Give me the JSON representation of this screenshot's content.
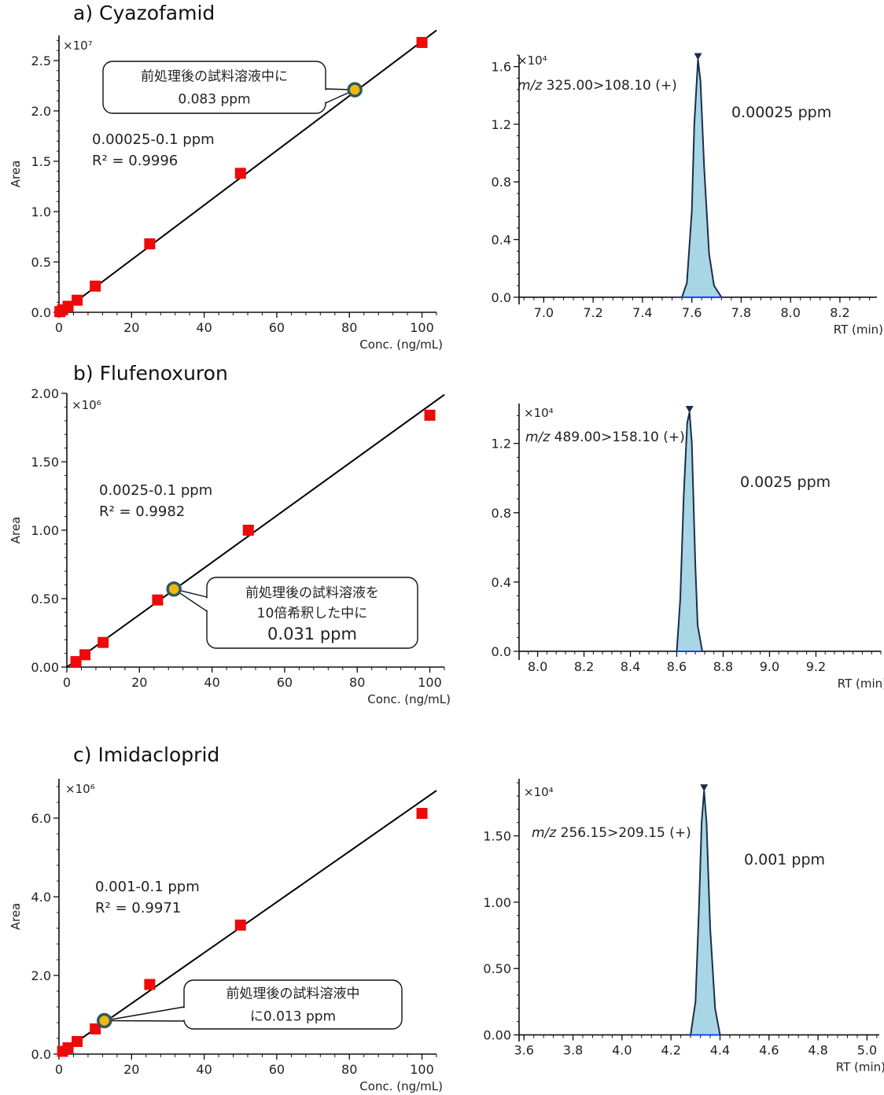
{
  "panels": [
    {
      "title": "a) Cyazofamid"
    },
    {
      "title": "b) Flufenoxuron"
    },
    {
      "title": "c) Imidacloprid"
    }
  ],
  "chart_data": [
    {
      "type": "scatter",
      "panel": "a",
      "title": "",
      "xlabel": "Conc. (ng/mL)",
      "ylabel": "Area",
      "y_multiplier": "×10⁷",
      "xlim": [
        0,
        104
      ],
      "ylim": [
        0,
        2.75
      ],
      "xticks": [
        0,
        20,
        40,
        60,
        80,
        100
      ],
      "yticks": [
        0.0,
        0.5,
        1.0,
        1.5,
        2.0,
        2.5
      ],
      "ytick_labels": [
        "0.0",
        "0.5",
        "1.0",
        "1.5",
        "2.0",
        "2.5"
      ],
      "points": {
        "x": [
          0.25,
          1,
          2.5,
          5,
          10,
          25,
          50,
          100
        ],
        "y": [
          0.006,
          0.025,
          0.06,
          0.12,
          0.26,
          0.68,
          1.38,
          2.68
        ]
      },
      "fit_line": {
        "x": [
          0,
          104
        ],
        "y": [
          -0.02,
          2.8
        ]
      },
      "sample_point": {
        "x": 81.5,
        "y": 2.21
      },
      "annotation_range": "0.00025-0.1 ppm",
      "annotation_r2": "R² = 0.9996",
      "callout_lines": [
        "前処理後の試料溶液中に",
        "0.083 ppm"
      ]
    },
    {
      "type": "line",
      "panel": "a",
      "title": "",
      "xlabel": "RT (min)",
      "ylabel": "",
      "y_multiplier": "×10⁴",
      "xlim": [
        6.9,
        8.35
      ],
      "ylim": [
        -0.05,
        1.68
      ],
      "xticks": [
        7.0,
        7.2,
        7.4,
        7.6,
        7.8,
        8.0,
        8.2
      ],
      "xtick_labels": [
        "7.0",
        "7.2",
        "7.4",
        "7.6",
        "7.8",
        "8.0",
        "8.2"
      ],
      "yticks": [
        0.0,
        0.4,
        0.8,
        1.2,
        1.6
      ],
      "ytick_labels": [
        "0.0",
        "0.4",
        "0.8",
        "1.2",
        "1.6"
      ],
      "transition_italic": "m/z",
      "transition": "325.00>108.10 (+)",
      "concentration_label": "0.00025 ppm",
      "peak": {
        "x": [
          7.56,
          7.58,
          7.6,
          7.61,
          7.625,
          7.635,
          7.65,
          7.67,
          7.69,
          7.72
        ],
        "y": [
          0.0,
          0.1,
          0.6,
          1.2,
          1.65,
          1.5,
          0.9,
          0.3,
          0.08,
          0.0
        ]
      }
    },
    {
      "type": "scatter",
      "panel": "b",
      "title": "",
      "xlabel": "Conc. (ng/mL)",
      "ylabel": "Area",
      "y_multiplier": "×10⁶",
      "xlim": [
        0,
        104
      ],
      "ylim": [
        0,
        2.0
      ],
      "xticks": [
        0,
        20,
        40,
        60,
        80,
        100
      ],
      "yticks": [
        0.0,
        0.5,
        1.0,
        1.5,
        2.0
      ],
      "ytick_labels": [
        "0.00",
        "0.50",
        "1.00",
        "1.50",
        "2.00"
      ],
      "points": {
        "x": [
          2.5,
          5,
          10,
          25,
          50,
          100
        ],
        "y": [
          0.04,
          0.09,
          0.18,
          0.49,
          1.0,
          1.84
        ]
      },
      "fit_line": {
        "x": [
          0,
          104
        ],
        "y": [
          0.0,
          1.99
        ]
      },
      "sample_point": {
        "x": 29.5,
        "y": 0.57
      },
      "annotation_range": "0.0025-0.1 ppm",
      "annotation_r2": "R² = 0.9982",
      "callout_lines": [
        "前処理後の試料溶液を",
        "10倍希釈した中に",
        "0.031 ppm"
      ]
    },
    {
      "type": "line",
      "panel": "b",
      "title": "",
      "xlabel": "RT (min)",
      "ylabel": "",
      "y_multiplier": "×10⁴",
      "xlim": [
        7.92,
        9.48
      ],
      "ylim": [
        -0.05,
        1.43
      ],
      "xticks": [
        8.0,
        8.2,
        8.4,
        8.6,
        8.8,
        9.0,
        9.2
      ],
      "xtick_labels": [
        "8.0",
        "8.2",
        "8.4",
        "8.6",
        "8.8",
        "9.0",
        "9.2"
      ],
      "yticks": [
        0.0,
        0.4,
        0.8,
        1.2
      ],
      "ytick_labels": [
        "0.0",
        "0.4",
        "0.8",
        "1.2"
      ],
      "transition_italic": "m/z",
      "transition": "489.00>158.10 (+)",
      "concentration_label": "0.0025 ppm",
      "peak": {
        "x": [
          8.6,
          8.615,
          8.63,
          8.645,
          8.655,
          8.665,
          8.68,
          8.69,
          8.71
        ],
        "y": [
          0.0,
          0.3,
          0.9,
          1.32,
          1.38,
          1.2,
          0.5,
          0.15,
          0.0
        ]
      }
    },
    {
      "type": "scatter",
      "panel": "c",
      "title": "",
      "xlabel": "Conc. (ng/mL)",
      "ylabel": "Area",
      "y_multiplier": "×10⁶",
      "xlim": [
        0,
        104
      ],
      "ylim": [
        0,
        7.0
      ],
      "xticks": [
        0,
        20,
        40,
        60,
        80,
        100
      ],
      "yticks": [
        0,
        2,
        4,
        6
      ],
      "ytick_labels": [
        "0.0",
        "2.0",
        "4.0",
        "6.0"
      ],
      "points": {
        "x": [
          1,
          2.5,
          5,
          10,
          25,
          50,
          100
        ],
        "y": [
          0.07,
          0.16,
          0.32,
          0.64,
          1.77,
          3.28,
          6.12
        ]
      },
      "fit_line": {
        "x": [
          0,
          104
        ],
        "y": [
          0.0,
          6.7
        ]
      },
      "sample_point": {
        "x": 12.5,
        "y": 0.85
      },
      "annotation_range": "0.001-0.1 ppm",
      "annotation_r2": "R² = 0.9971",
      "callout_lines": [
        "前処理後の試料溶液中",
        "に0.013 ppm"
      ]
    },
    {
      "type": "line",
      "panel": "c",
      "title": "",
      "xlabel": "RT (min)",
      "ylabel": "",
      "y_multiplier": "×10⁴",
      "xlim": [
        3.58,
        5.05
      ],
      "ylim": [
        -0.05,
        1.93
      ],
      "xticks": [
        3.6,
        3.8,
        4.0,
        4.2,
        4.4,
        4.6,
        4.8,
        5.0
      ],
      "xtick_labels": [
        "3.6",
        "3.8",
        "4.0",
        "4.2",
        "4.4",
        "4.6",
        "4.8",
        "5.0"
      ],
      "yticks": [
        0.0,
        0.5,
        1.0,
        1.5
      ],
      "ytick_labels": [
        "0.00",
        "0.50",
        "1.00",
        "1.50"
      ],
      "transition_italic": "m/z",
      "transition": "256.15>209.15 (+)",
      "concentration_label": "0.001 ppm",
      "peak": {
        "x": [
          4.28,
          4.3,
          4.315,
          4.325,
          4.335,
          4.345,
          4.36,
          4.38,
          4.4
        ],
        "y": [
          0.0,
          0.25,
          1.0,
          1.6,
          1.84,
          1.6,
          0.8,
          0.2,
          0.0
        ]
      }
    }
  ],
  "colors": {
    "marker": "#ee0a0a",
    "peak_fill": "#a8d6e4",
    "peak_line": "#1c2e4a",
    "baseline": "#1840ff",
    "sample_ring": "#2a5a64",
    "sample_fill": "#f2b70f",
    "callout_text": "#1c3e7a"
  }
}
